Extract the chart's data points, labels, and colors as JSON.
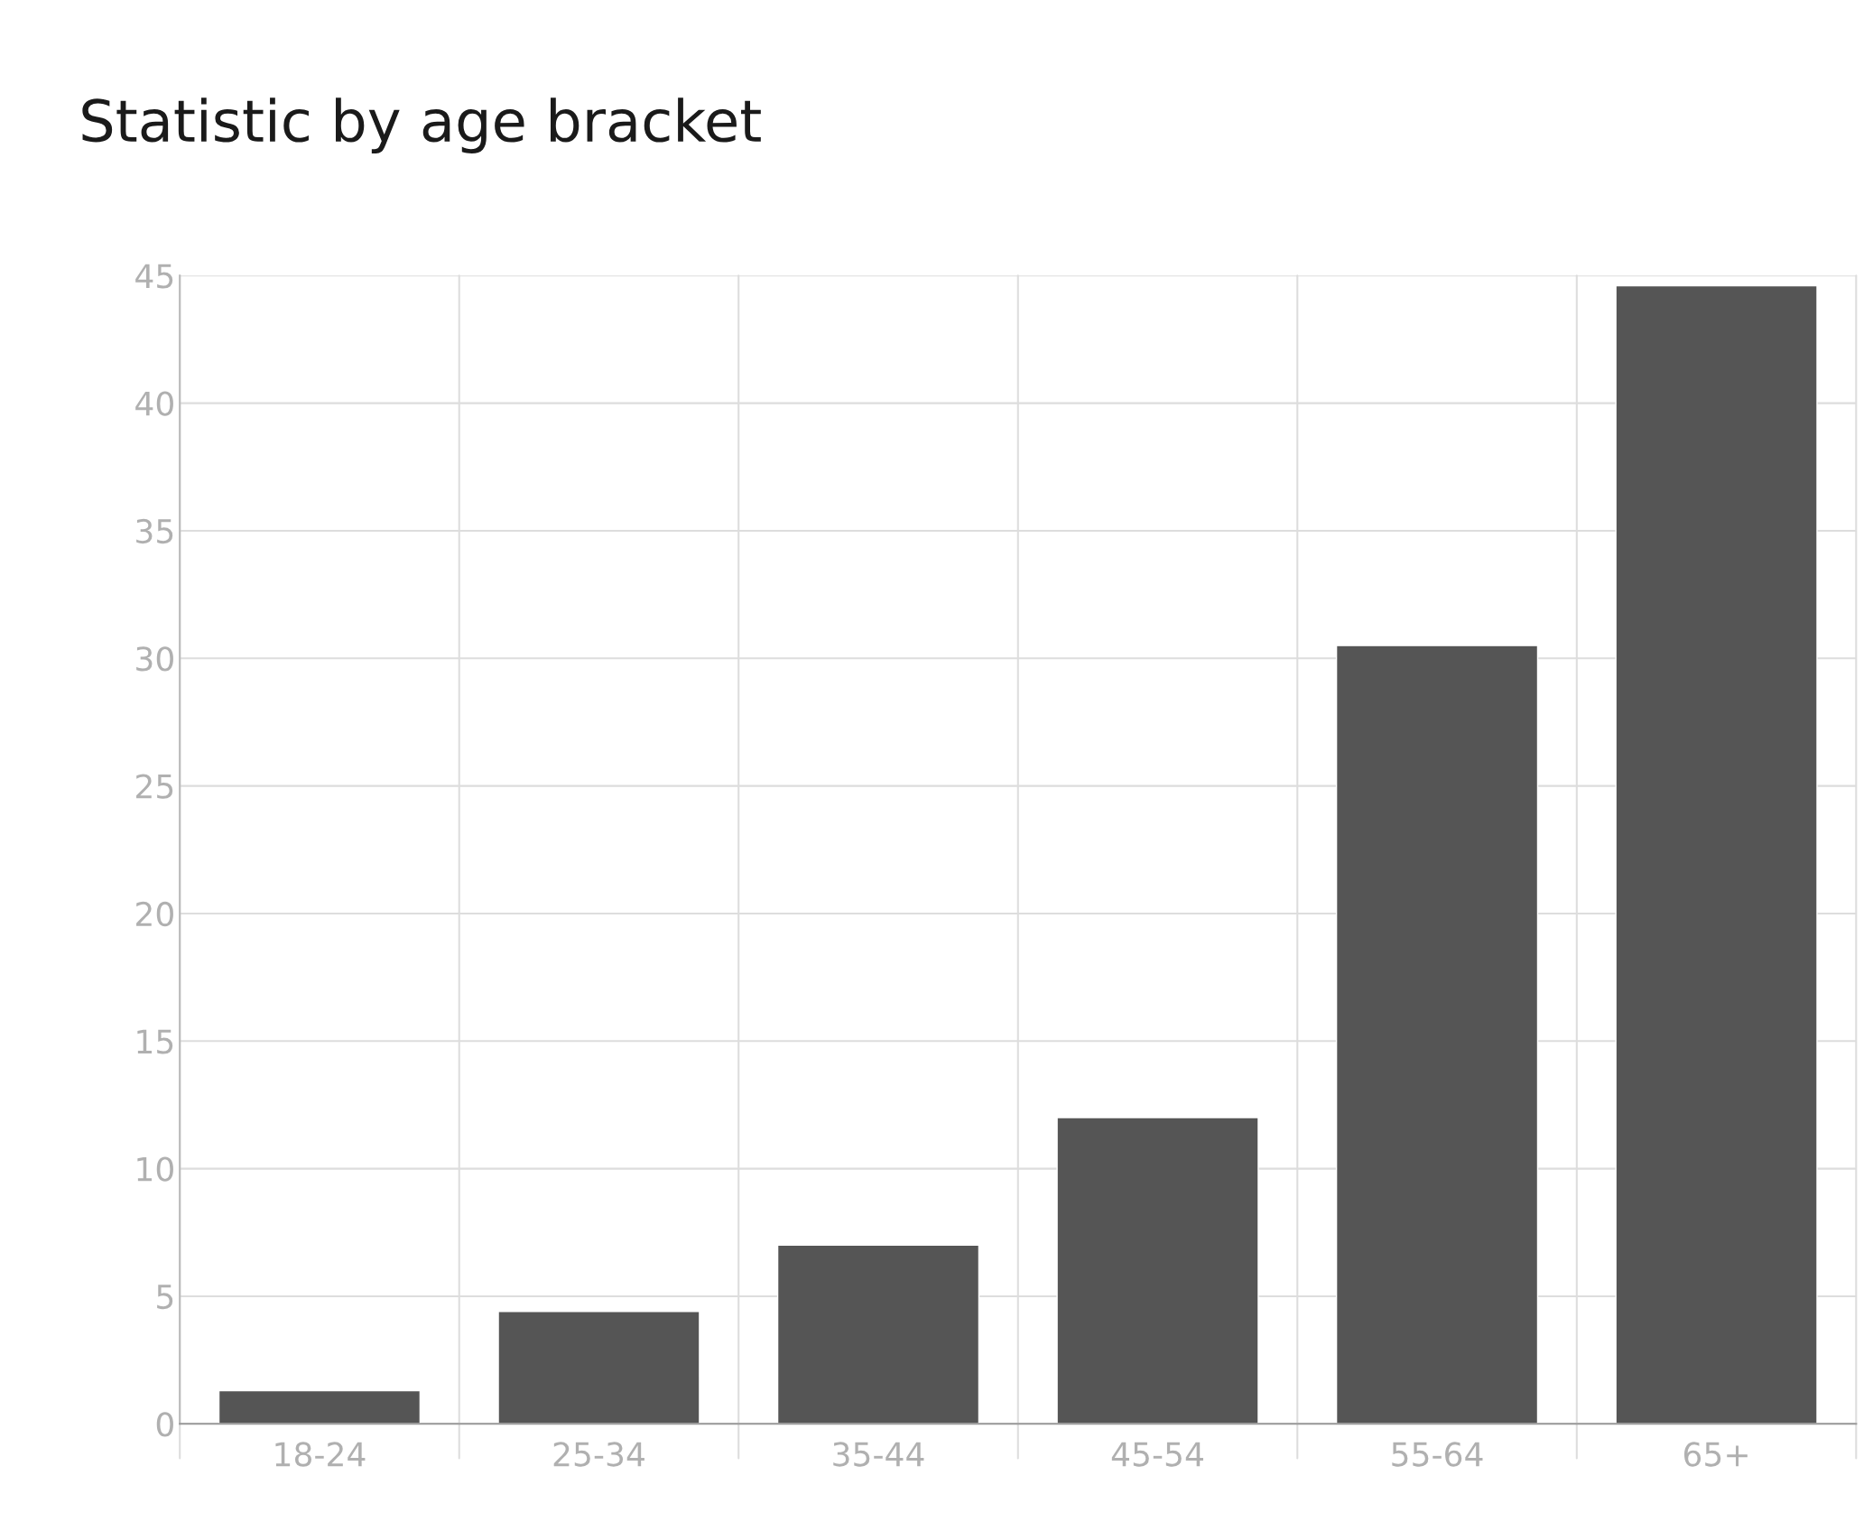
{
  "chart_data": {
    "type": "bar",
    "title": "Statistic by age bracket",
    "categories": [
      "18-24",
      "25-34",
      "35-44",
      "45-54",
      "55-64",
      "65+"
    ],
    "values": [
      1.3,
      4.4,
      7,
      12,
      30.5,
      44.6
    ],
    "color": "#555555",
    "ylim": [
      0,
      45
    ],
    "yticks": [
      0,
      5,
      10,
      15,
      20,
      25,
      30,
      35,
      40,
      45
    ],
    "grid": true
  }
}
